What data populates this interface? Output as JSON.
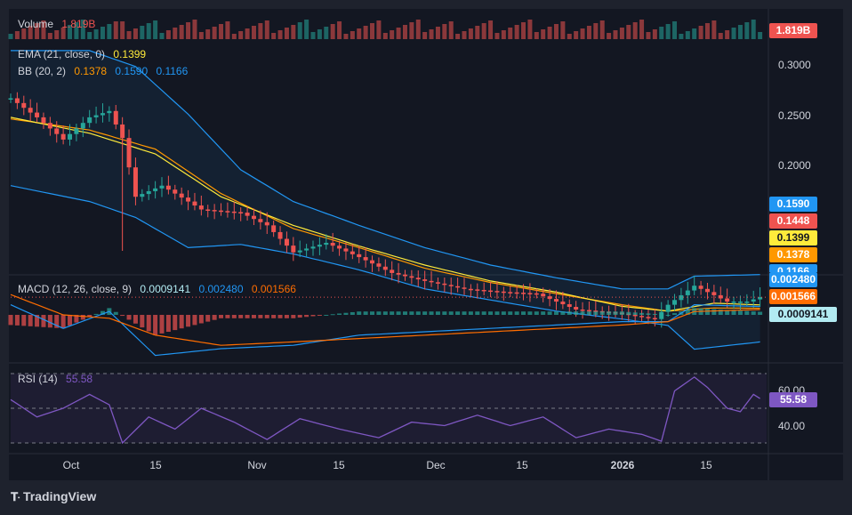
{
  "header": {
    "volume_name": "Volume",
    "volume_value": "1.819B",
    "ema_name": "EMA (21, close, 0)",
    "ema_value": "0.1399",
    "bb_name": "BB (20, 2)",
    "bb_mid": "0.1378",
    "bb_upper": "0.1590",
    "bb_lower": "0.1166",
    "macd_name": "MACD (12, 26, close, 9)",
    "macd_hist": "0.0009141",
    "macd_line": "0.002480",
    "macd_signal": "0.001566",
    "rsi_name": "RSI (14)",
    "rsi_value": "55.58"
  },
  "badges": {
    "volume": "1.819B",
    "bb_upper": "0.1590",
    "last_price": "0.1448",
    "ema": "0.1399",
    "bb_mid": "0.1378",
    "bb_lower": "0.1166",
    "macd_line": "0.002480",
    "macd_signal": "0.001566",
    "macd_hist": "0.0009141",
    "rsi": "55.58"
  },
  "price_axis": [
    "0.3000",
    "0.2500",
    "0.2000"
  ],
  "rsi_axis": [
    "60.00",
    "40.00"
  ],
  "x_axis": [
    "Oct",
    "15",
    "Nov",
    "15",
    "Dec",
    "15",
    "2026",
    "15"
  ],
  "brand": "TradingView",
  "colors": {
    "background": "#131722",
    "up": "#26a69a",
    "down": "#ef5350",
    "ema": "#ffeb3b",
    "bb_basis": "#ff9800",
    "bb_band": "#2196f3",
    "macd": "#2196f3",
    "signal": "#ff6d00",
    "rsi": "#7e57c2"
  },
  "chart_data": {
    "type": "candlestick",
    "x_start": "2025-09-23",
    "x_end": "2026-01-16",
    "price_range": [
      0.165,
      0.305
    ],
    "rsi_levels": [
      70,
      50,
      30
    ],
    "last_price": 0.1448,
    "price_series": [
      [
        "2025-09-23",
        0.27
      ],
      [
        "2025-09-27",
        0.258
      ],
      [
        "2025-10-01",
        0.244
      ],
      [
        "2025-10-05",
        0.258
      ],
      [
        "2025-10-08",
        0.262
      ],
      [
        "2025-10-10",
        0.245
      ],
      [
        "2025-10-12",
        0.208
      ],
      [
        "2025-10-16",
        0.215
      ],
      [
        "2025-10-22",
        0.2
      ],
      [
        "2025-10-28",
        0.198
      ],
      [
        "2025-11-01",
        0.19
      ],
      [
        "2025-11-05",
        0.173
      ],
      [
        "2025-11-10",
        0.179
      ],
      [
        "2025-11-15",
        0.17
      ],
      [
        "2025-11-20",
        0.16
      ],
      [
        "2025-11-25",
        0.155
      ],
      [
        "2025-12-01",
        0.15
      ],
      [
        "2025-12-07",
        0.148
      ],
      [
        "2025-12-12",
        0.147
      ],
      [
        "2025-12-18",
        0.137
      ],
      [
        "2025-12-24",
        0.135
      ],
      [
        "2025-12-30",
        0.131
      ],
      [
        "2026-01-01",
        0.14
      ],
      [
        "2026-01-05",
        0.152
      ],
      [
        "2026-01-10",
        0.142
      ],
      [
        "2026-01-13",
        0.142
      ],
      [
        "2026-01-15",
        0.1448
      ]
    ],
    "ema21_series": [
      [
        "2025-09-23",
        0.258
      ],
      [
        "2025-10-05",
        0.248
      ],
      [
        "2025-10-15",
        0.235
      ],
      [
        "2025-10-25",
        0.208
      ],
      [
        "2025-11-05",
        0.19
      ],
      [
        "2025-11-15",
        0.177
      ],
      [
        "2025-11-25",
        0.165
      ],
      [
        "2025-12-05",
        0.155
      ],
      [
        "2025-12-15",
        0.148
      ],
      [
        "2025-12-25",
        0.139
      ],
      [
        "2026-01-01",
        0.136
      ],
      [
        "2026-01-08",
        0.141
      ],
      [
        "2026-01-15",
        0.1399
      ]
    ],
    "bb_basis_series": [
      [
        "2025-09-23",
        0.257
      ],
      [
        "2025-10-05",
        0.25
      ],
      [
        "2025-10-15",
        0.238
      ],
      [
        "2025-10-25",
        0.21
      ],
      [
        "2025-11-05",
        0.188
      ],
      [
        "2025-11-15",
        0.176
      ],
      [
        "2025-11-25",
        0.163
      ],
      [
        "2025-12-05",
        0.154
      ],
      [
        "2025-12-15",
        0.147
      ],
      [
        "2025-12-25",
        0.14
      ],
      [
        "2026-01-01",
        0.136
      ],
      [
        "2026-01-08",
        0.138
      ],
      [
        "2026-01-15",
        0.1378
      ]
    ],
    "bb_upper_series": [
      [
        "2025-09-23",
        0.3
      ],
      [
        "2025-10-05",
        0.3
      ],
      [
        "2025-10-12",
        0.29
      ],
      [
        "2025-10-20",
        0.26
      ],
      [
        "2025-10-28",
        0.225
      ],
      [
        "2025-11-05",
        0.205
      ],
      [
        "2025-11-15",
        0.19
      ],
      [
        "2025-11-25",
        0.176
      ],
      [
        "2025-12-05",
        0.165
      ],
      [
        "2025-12-15",
        0.157
      ],
      [
        "2025-12-25",
        0.15
      ],
      [
        "2026-01-01",
        0.15
      ],
      [
        "2026-01-05",
        0.158
      ],
      [
        "2026-01-15",
        0.159
      ]
    ],
    "bb_lower_series": [
      [
        "2025-09-23",
        0.215
      ],
      [
        "2025-10-05",
        0.205
      ],
      [
        "2025-10-12",
        0.195
      ],
      [
        "2025-10-20",
        0.176
      ],
      [
        "2025-10-28",
        0.178
      ],
      [
        "2025-11-05",
        0.172
      ],
      [
        "2025-11-15",
        0.162
      ],
      [
        "2025-11-25",
        0.15
      ],
      [
        "2025-12-05",
        0.143
      ],
      [
        "2025-12-15",
        0.136
      ],
      [
        "2025-12-25",
        0.131
      ],
      [
        "2026-01-01",
        0.127
      ],
      [
        "2026-01-05",
        0.112
      ],
      [
        "2026-01-15",
        0.1166
      ]
    ],
    "macd_series": [
      [
        "2025-09-23",
        0.003
      ],
      [
        "2025-10-01",
        -0.004
      ],
      [
        "2025-10-08",
        0.001
      ],
      [
        "2025-10-15",
        -0.012
      ],
      [
        "2025-10-25",
        -0.01
      ],
      [
        "2025-11-05",
        -0.009
      ],
      [
        "2025-11-15",
        -0.006
      ],
      [
        "2025-11-25",
        -0.005
      ],
      [
        "2025-12-05",
        -0.004
      ],
      [
        "2025-12-15",
        -0.003
      ],
      [
        "2025-12-25",
        -0.002
      ],
      [
        "2026-01-01",
        -0.002
      ],
      [
        "2026-01-05",
        0.003
      ],
      [
        "2026-01-15",
        0.00248
      ]
    ],
    "signal_series": [
      [
        "2025-09-23",
        0.006
      ],
      [
        "2025-10-01",
        0.0
      ],
      [
        "2025-10-08",
        -0.001
      ],
      [
        "2025-10-15",
        -0.006
      ],
      [
        "2025-10-25",
        -0.009
      ],
      [
        "2025-11-05",
        -0.008
      ],
      [
        "2025-11-15",
        -0.007
      ],
      [
        "2025-11-25",
        -0.006
      ],
      [
        "2025-12-05",
        -0.005
      ],
      [
        "2025-12-15",
        -0.004
      ],
      [
        "2025-12-25",
        -0.003
      ],
      [
        "2026-01-01",
        -0.002
      ],
      [
        "2026-01-05",
        0.001
      ],
      [
        "2026-01-15",
        0.001566
      ]
    ],
    "rsi_series": [
      [
        "2025-09-23",
        55
      ],
      [
        "2025-09-27",
        45
      ],
      [
        "2025-10-01",
        50
      ],
      [
        "2025-10-05",
        58
      ],
      [
        "2025-10-08",
        52
      ],
      [
        "2025-10-10",
        30
      ],
      [
        "2025-10-14",
        45
      ],
      [
        "2025-10-18",
        38
      ],
      [
        "2025-10-22",
        50
      ],
      [
        "2025-10-27",
        42
      ],
      [
        "2025-11-01",
        32
      ],
      [
        "2025-11-06",
        44
      ],
      [
        "2025-11-12",
        38
      ],
      [
        "2025-11-18",
        33
      ],
      [
        "2025-11-23",
        42
      ],
      [
        "2025-11-28",
        40
      ],
      [
        "2025-12-03",
        46
      ],
      [
        "2025-12-08",
        40
      ],
      [
        "2025-12-13",
        45
      ],
      [
        "2025-12-18",
        33
      ],
      [
        "2025-12-23",
        38
      ],
      [
        "2025-12-28",
        35
      ],
      [
        "2025-12-31",
        31
      ],
      [
        "2026-01-02",
        60
      ],
      [
        "2026-01-05",
        68
      ],
      [
        "2026-01-07",
        62
      ],
      [
        "2026-01-10",
        50
      ],
      [
        "2026-01-12",
        48
      ],
      [
        "2026-01-14",
        58
      ],
      [
        "2026-01-15",
        55.58
      ]
    ]
  }
}
